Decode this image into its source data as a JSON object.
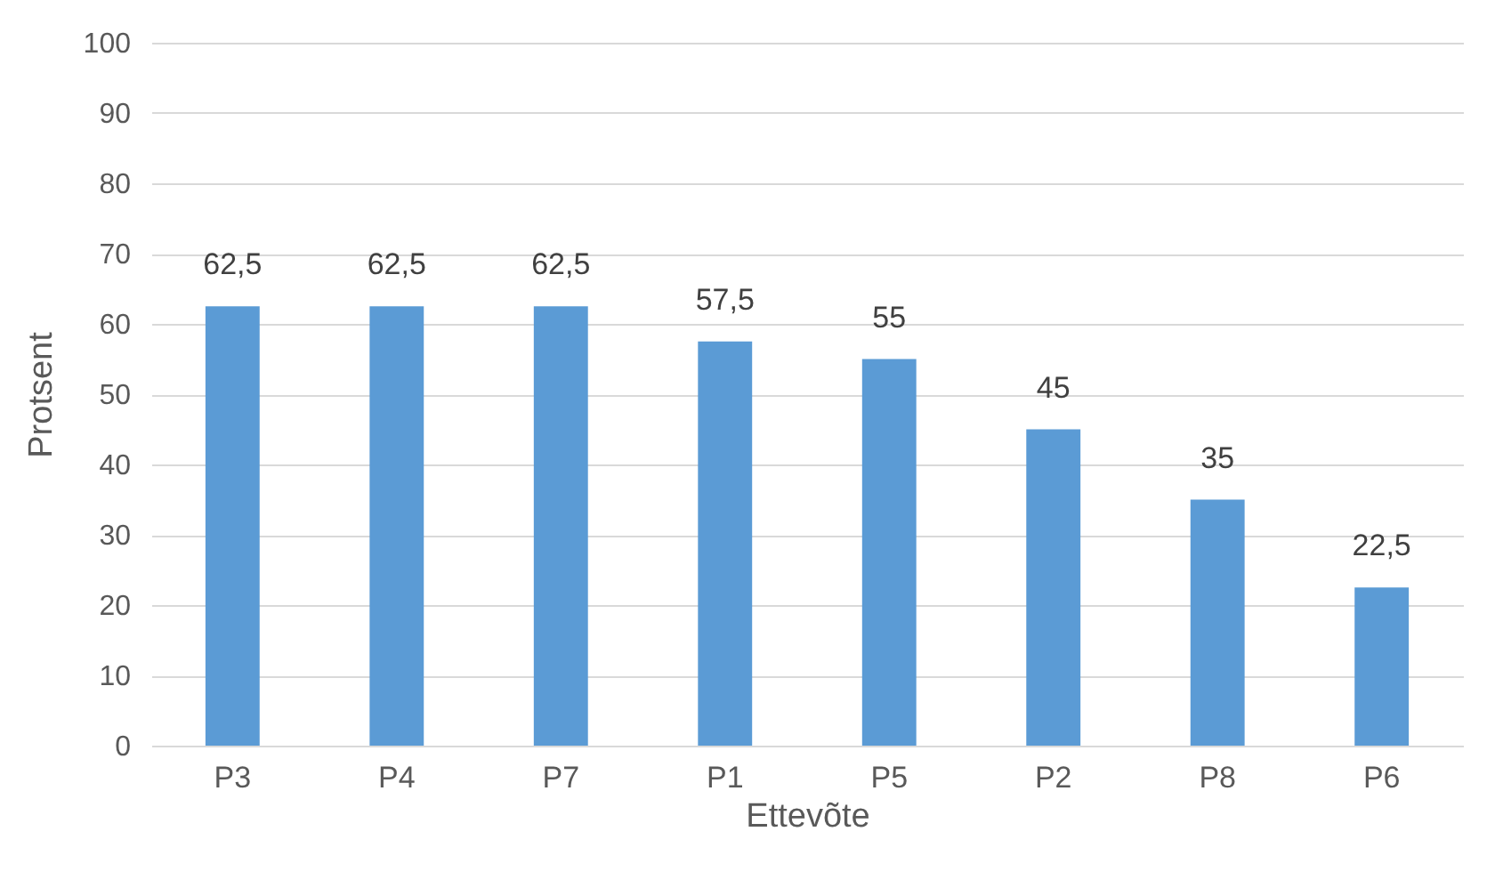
{
  "chart_data": {
    "type": "bar",
    "xlabel": "Ettevõte",
    "ylabel": "Protsent",
    "categories": [
      "P3",
      "P4",
      "P7",
      "P1",
      "P5",
      "P2",
      "P8",
      "P6"
    ],
    "values": [
      62.5,
      62.5,
      62.5,
      57.5,
      55,
      45,
      35,
      22.5
    ],
    "value_labels": [
      "62,5",
      "62,5",
      "62,5",
      "57,5",
      "55",
      "45",
      "35",
      "22,5"
    ],
    "color": "#5b9bd5",
    "ylim": [
      0,
      100
    ],
    "yticks": [
      0,
      10,
      20,
      30,
      40,
      50,
      60,
      70,
      80,
      90,
      100
    ],
    "grid": "y"
  }
}
